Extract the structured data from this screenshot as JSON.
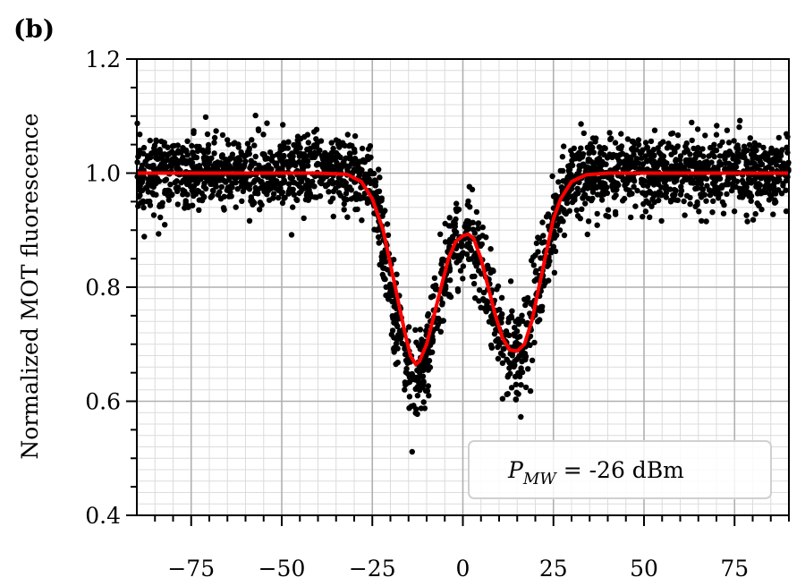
{
  "chart_data": {
    "type": "scatter",
    "panel_label": "(b)",
    "title": "",
    "xlabel": "",
    "ylabel": "Normalized MOT fluorescence",
    "xlim": [
      -90,
      90
    ],
    "ylim": [
      0.4,
      1.2
    ],
    "x_ticks": [
      -75,
      -50,
      -25,
      0,
      25,
      50,
      75
    ],
    "x_tick_labels": [
      "−75",
      "−50",
      "−25",
      "0",
      "25",
      "50",
      "75"
    ],
    "y_ticks": [
      0.4,
      0.6,
      0.8,
      1.0,
      1.2
    ],
    "y_tick_labels": [
      "0.4",
      "0.6",
      "0.8",
      "1.0",
      "1.2"
    ],
    "grid": true,
    "minor_grid": true,
    "legend": {
      "position": "lower-right",
      "text_symbol": "P",
      "text_subscript": "MW",
      "text_rest": " = -26 dBm"
    },
    "series": [
      {
        "kind": "scatter",
        "color": "#000000",
        "description_points": [
          [
            -90,
            1.0
          ],
          [
            -60,
            1.0
          ],
          [
            -30,
            1.0
          ],
          [
            -26,
            0.99
          ],
          [
            -24,
            0.95
          ],
          [
            -22,
            0.88
          ],
          [
            -20,
            0.79
          ],
          [
            -18,
            0.73
          ],
          [
            -16,
            0.68
          ],
          [
            -14,
            0.64
          ],
          [
            -13,
            0.63
          ],
          [
            -12,
            0.64
          ],
          [
            -10,
            0.68
          ],
          [
            -8,
            0.74
          ],
          [
            -6,
            0.8
          ],
          [
            -4,
            0.85
          ],
          [
            -2,
            0.88
          ],
          [
            0,
            0.89
          ],
          [
            1.5,
            0.89
          ],
          [
            3,
            0.88
          ],
          [
            5,
            0.84
          ],
          [
            7,
            0.79
          ],
          [
            9,
            0.74
          ],
          [
            11,
            0.7
          ],
          [
            13,
            0.68
          ],
          [
            15,
            0.68
          ],
          [
            17,
            0.7
          ],
          [
            19,
            0.74
          ],
          [
            21,
            0.8
          ],
          [
            23,
            0.86
          ],
          [
            25,
            0.92
          ],
          [
            27,
            0.96
          ],
          [
            30,
            0.99
          ],
          [
            35,
            1.0
          ],
          [
            60,
            1.0
          ],
          [
            90,
            1.0
          ]
        ]
      },
      {
        "kind": "line",
        "color": "#ff0000",
        "description_points": [
          [
            -90,
            1.0
          ],
          [
            -40,
            1.0
          ],
          [
            -32,
            0.998
          ],
          [
            -28,
            0.985
          ],
          [
            -25,
            0.955
          ],
          [
            -22,
            0.9
          ],
          [
            -20,
            0.84
          ],
          [
            -18,
            0.78
          ],
          [
            -16,
            0.72
          ],
          [
            -14.5,
            0.68
          ],
          [
            -13,
            0.665
          ],
          [
            -12,
            0.67
          ],
          [
            -10,
            0.7
          ],
          [
            -8,
            0.75
          ],
          [
            -6,
            0.8
          ],
          [
            -4,
            0.85
          ],
          [
            -2,
            0.88
          ],
          [
            0,
            0.89
          ],
          [
            1.5,
            0.893
          ],
          [
            3,
            0.885
          ],
          [
            5,
            0.85
          ],
          [
            7,
            0.8
          ],
          [
            9,
            0.75
          ],
          [
            11,
            0.71
          ],
          [
            13,
            0.69
          ],
          [
            15,
            0.688
          ],
          [
            17,
            0.7
          ],
          [
            19,
            0.74
          ],
          [
            21,
            0.8
          ],
          [
            23,
            0.86
          ],
          [
            25,
            0.92
          ],
          [
            27,
            0.955
          ],
          [
            30,
            0.985
          ],
          [
            34,
            0.997
          ],
          [
            40,
            1.0
          ],
          [
            90,
            1.0
          ]
        ]
      }
    ]
  }
}
